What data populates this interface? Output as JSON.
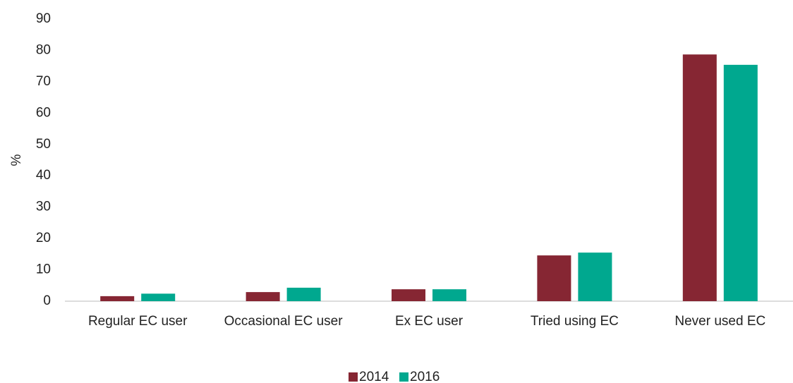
{
  "chart_data": {
    "type": "bar",
    "ylabel": "%",
    "categories": [
      "Regular EC user",
      "Occasional EC user",
      "Ex EC user",
      "Tried using EC",
      "Never used EC"
    ],
    "series": [
      {
        "name": "2014",
        "color": "#862633",
        "values": [
          1.6,
          2.9,
          3.8,
          14.6,
          78.7
        ]
      },
      {
        "name": "2016",
        "color": "#00a88f",
        "values": [
          2.4,
          4.3,
          3.8,
          15.5,
          75.4
        ]
      }
    ],
    "ylim": [
      0,
      90
    ],
    "yticks": [
      0,
      10,
      20,
      30,
      40,
      50,
      60,
      70,
      80,
      90
    ],
    "grid": false,
    "legend": "bottom"
  }
}
